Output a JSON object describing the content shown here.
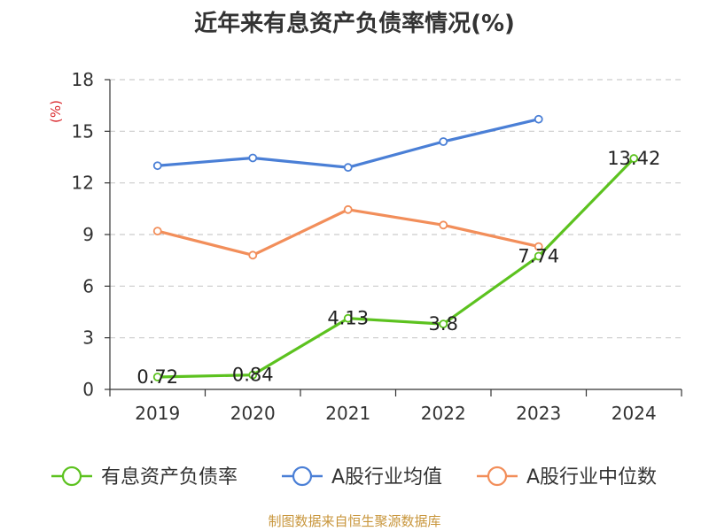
{
  "chart_data": {
    "type": "line",
    "title": "近年来有息资产负债率情况(%)",
    "ylabel": "(%)",
    "xlabel": "",
    "categories": [
      "2019",
      "2020",
      "2021",
      "2022",
      "2023",
      "2024"
    ],
    "ylim": [
      0,
      18
    ],
    "yticks": [
      0,
      3,
      6,
      9,
      12,
      15,
      18
    ],
    "grid": true,
    "legend_position": "bottom",
    "series": [
      {
        "name": "有息资产负债率",
        "color": "#5cc21f",
        "values": [
          0.72,
          0.84,
          4.13,
          3.8,
          7.74,
          13.42
        ],
        "labels": [
          "0.72",
          "0.84",
          "4.13",
          "3.8",
          "7.74",
          "13.42"
        ]
      },
      {
        "name": "A股行业均值",
        "color": "#4a7fd6",
        "values": [
          13.0,
          13.45,
          12.9,
          14.4,
          15.7,
          null
        ]
      },
      {
        "name": "A股行业中位数",
        "color": "#f28e5a",
        "values": [
          9.2,
          7.8,
          10.45,
          9.55,
          8.3,
          null
        ]
      }
    ]
  },
  "footer": {
    "source": "制图数据来自恒生聚源数据库"
  }
}
